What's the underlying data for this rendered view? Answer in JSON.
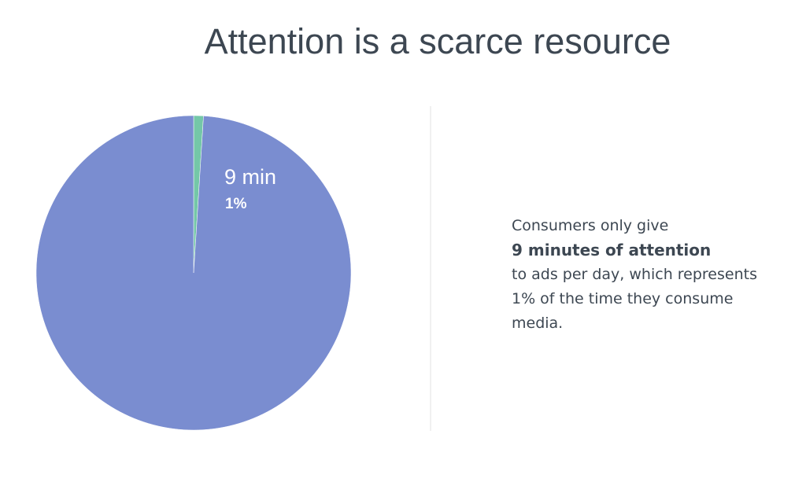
{
  "chart_data": {
    "type": "pie",
    "title": "Attention is a scarce resource",
    "categories": [
      "9 min",
      null
    ],
    "values": [
      1,
      99
    ],
    "value_labels": [
      "1%",
      null
    ],
    "colors": [
      "#74c7a8",
      "#7a8dd0"
    ]
  },
  "side_text": {
    "intro": "Consumers only give",
    "highlight": "9 minutes of attention",
    "rest": "to ads per day, which represents 1% of the time they consume media."
  }
}
